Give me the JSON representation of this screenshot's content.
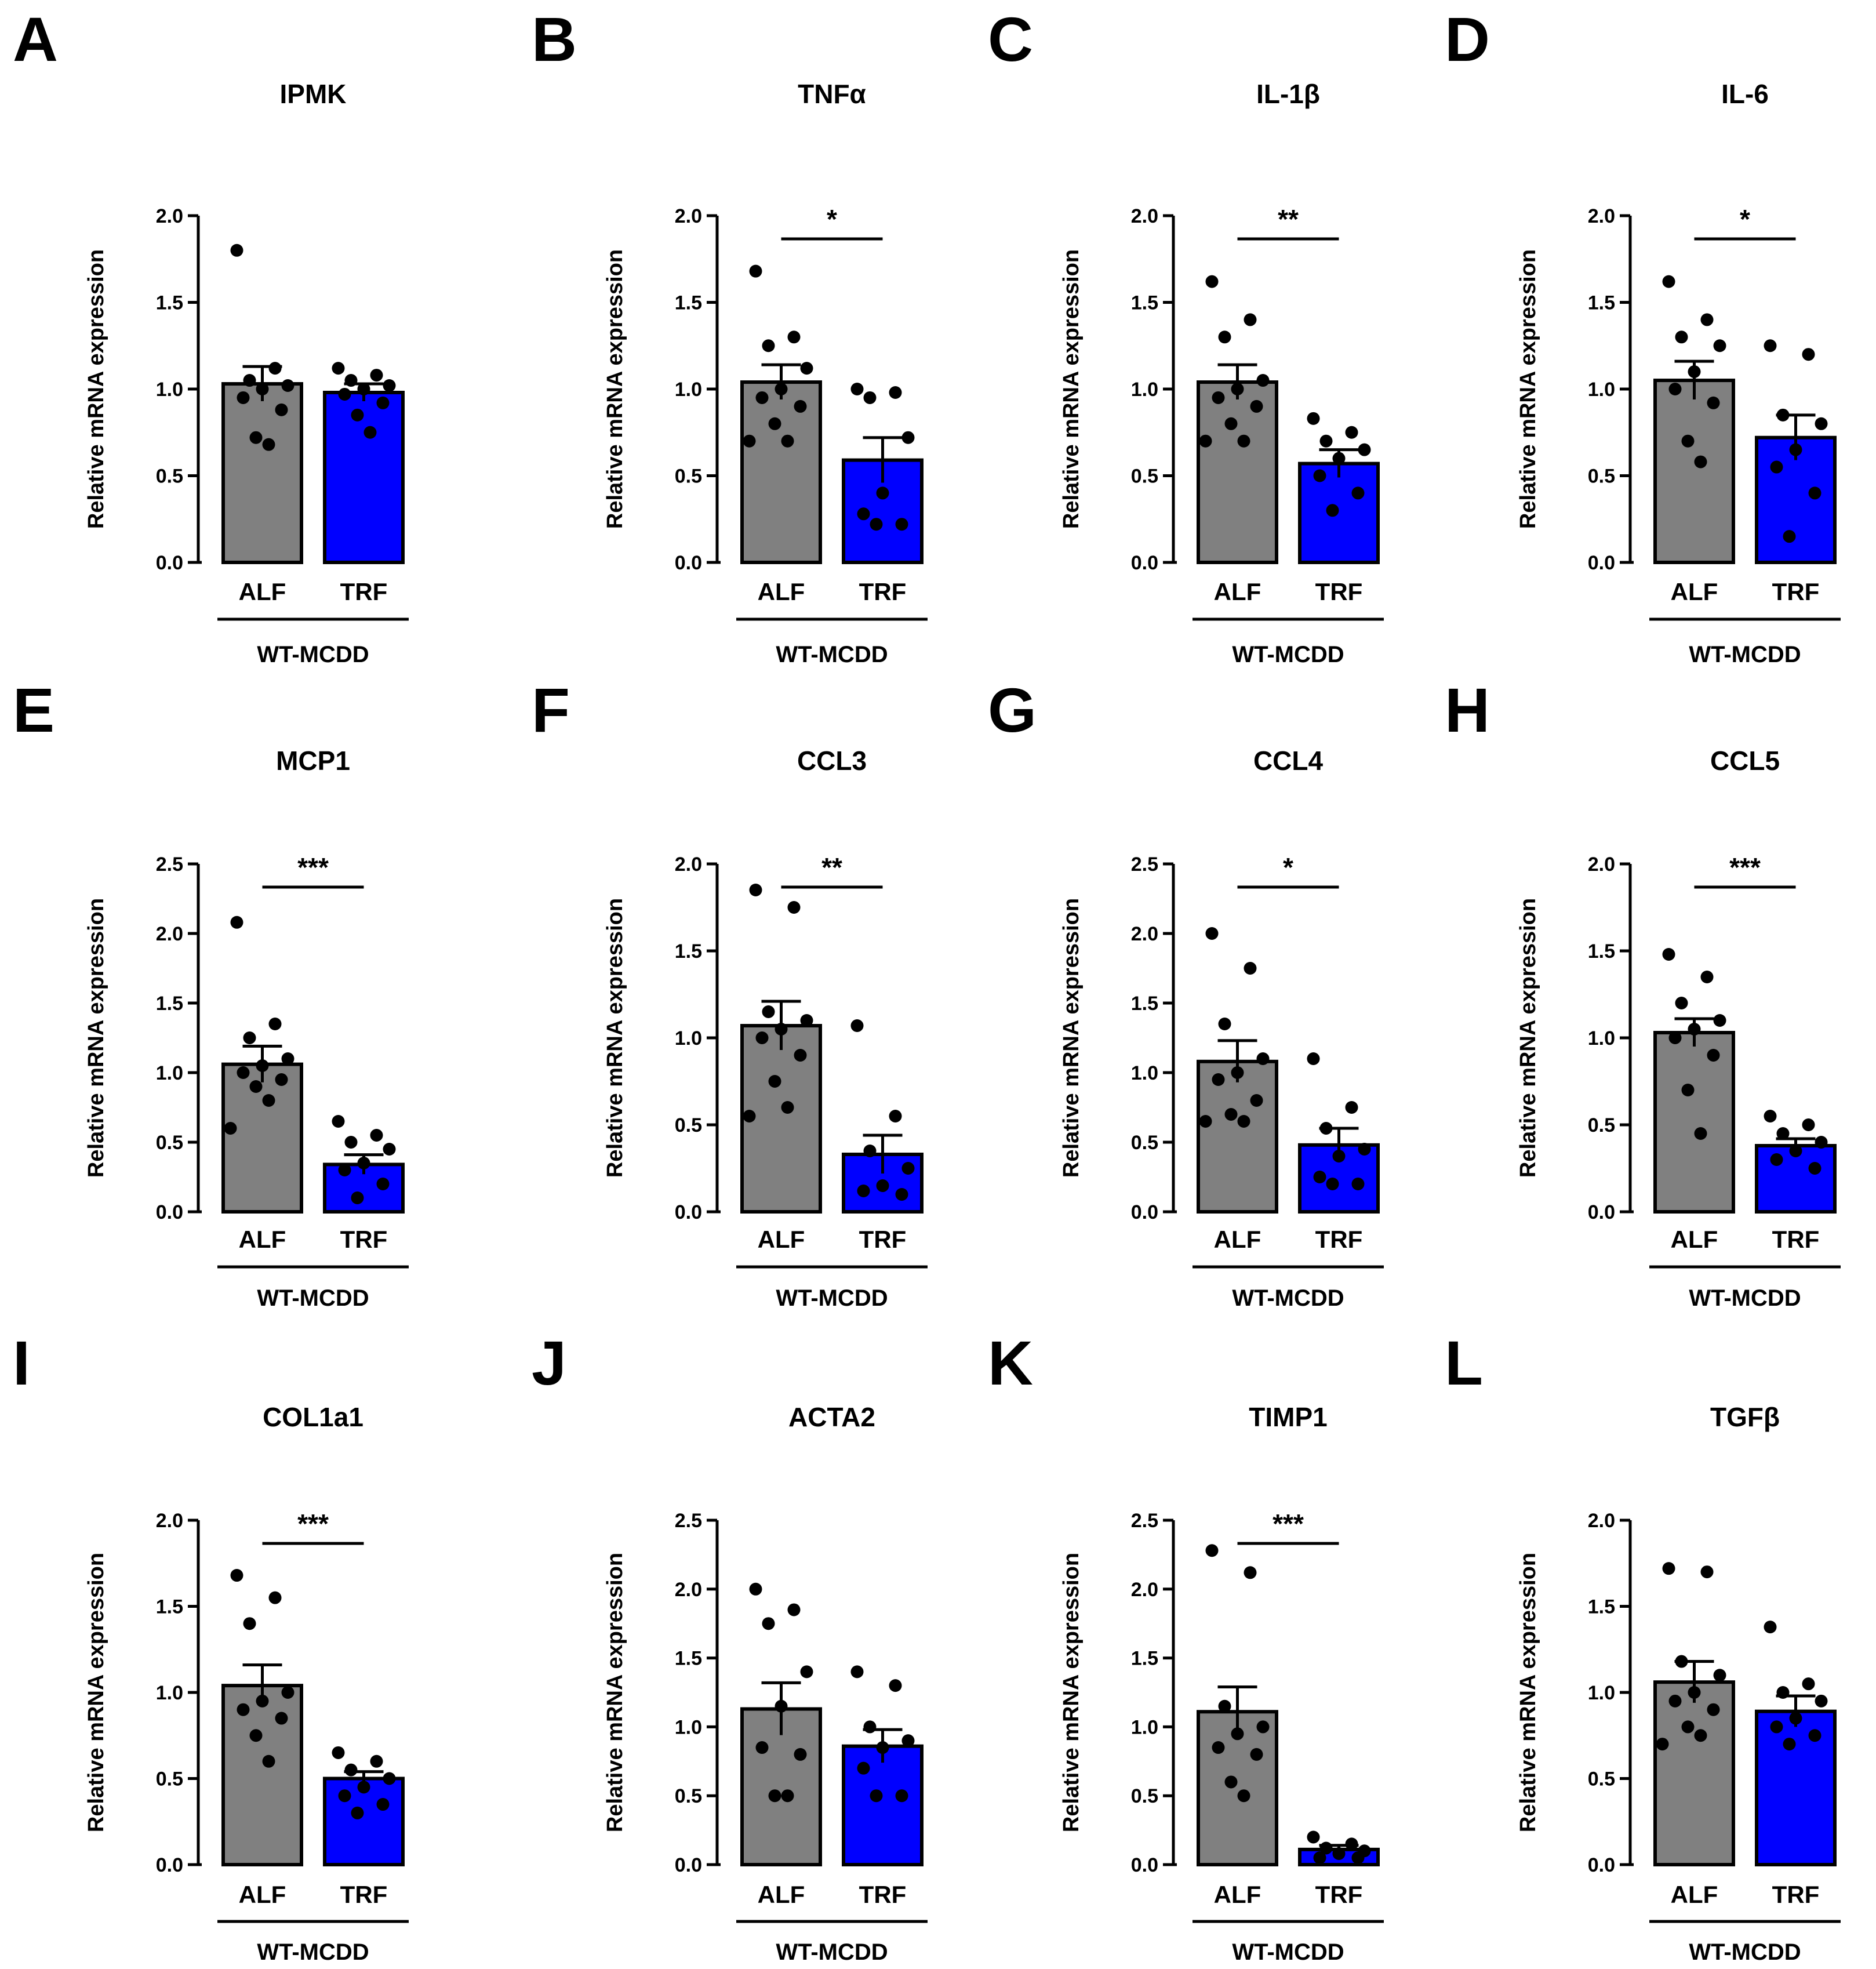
{
  "colors": {
    "alf": "#808080",
    "trf": "#0000ff",
    "ink": "#000000"
  },
  "chart_data": [
    {
      "panel": "A",
      "type": "bar",
      "title": "IPMK",
      "ylabel": "Relative mRNA expression",
      "ylim": [
        0,
        2.0
      ],
      "ticks": [
        "0.0",
        "0.5",
        "1.0",
        "1.5",
        "2.0"
      ],
      "categories": [
        "ALF",
        "TRF"
      ],
      "group": "WT-MCDD",
      "sig": "",
      "series": [
        {
          "name": "ALF",
          "mean": 1.03,
          "sem": 0.1,
          "points": [
            1.8,
            1.12,
            1.05,
            1.02,
            1.0,
            0.95,
            0.88,
            0.72,
            0.68
          ]
        },
        {
          "name": "TRF",
          "mean": 0.98,
          "sem": 0.05,
          "points": [
            1.12,
            1.08,
            1.05,
            1.02,
            1.0,
            0.97,
            0.92,
            0.85,
            0.75
          ]
        }
      ]
    },
    {
      "panel": "B",
      "type": "bar",
      "title": "TNFα",
      "ylabel": "Relative mRNA expression",
      "ylim": [
        0,
        2.0
      ],
      "ticks": [
        "0.0",
        "0.5",
        "1.0",
        "1.5",
        "2.0"
      ],
      "categories": [
        "ALF",
        "TRF"
      ],
      "group": "WT-MCDD",
      "sig": "*",
      "series": [
        {
          "name": "ALF",
          "mean": 1.04,
          "sem": 0.1,
          "points": [
            1.68,
            1.3,
            1.25,
            1.12,
            1.0,
            0.95,
            0.9,
            0.8,
            0.7,
            0.7
          ]
        },
        {
          "name": "TRF",
          "mean": 0.59,
          "sem": 0.13,
          "points": [
            1.0,
            0.98,
            0.95,
            0.72,
            0.4,
            0.28,
            0.22,
            0.22
          ]
        }
      ]
    },
    {
      "panel": "C",
      "type": "bar",
      "title": "IL-1β",
      "ylabel": "Relative mRNA expression",
      "ylim": [
        0,
        2.0
      ],
      "ticks": [
        "0.0",
        "0.5",
        "1.0",
        "1.5",
        "2.0"
      ],
      "categories": [
        "ALF",
        "TRF"
      ],
      "group": "WT-MCDD",
      "sig": "**",
      "series": [
        {
          "name": "ALF",
          "mean": 1.04,
          "sem": 0.1,
          "points": [
            1.62,
            1.4,
            1.3,
            1.05,
            1.0,
            0.95,
            0.9,
            0.8,
            0.7,
            0.7
          ]
        },
        {
          "name": "TRF",
          "mean": 0.57,
          "sem": 0.08,
          "points": [
            0.83,
            0.75,
            0.7,
            0.65,
            0.6,
            0.5,
            0.4,
            0.3
          ]
        }
      ]
    },
    {
      "panel": "D",
      "type": "bar",
      "title": "IL-6",
      "ylabel": "Relative mRNA expression",
      "ylim": [
        0,
        2.0
      ],
      "ticks": [
        "0.0",
        "0.5",
        "1.0",
        "1.5",
        "2.0"
      ],
      "categories": [
        "ALF",
        "TRF"
      ],
      "group": "WT-MCDD",
      "sig": "*",
      "series": [
        {
          "name": "ALF",
          "mean": 1.05,
          "sem": 0.11,
          "points": [
            1.62,
            1.4,
            1.3,
            1.25,
            1.1,
            1.0,
            0.92,
            0.7,
            0.58
          ]
        },
        {
          "name": "TRF",
          "mean": 0.72,
          "sem": 0.13,
          "points": [
            1.25,
            1.2,
            0.85,
            0.8,
            0.65,
            0.55,
            0.4,
            0.15
          ]
        }
      ]
    },
    {
      "panel": "E",
      "type": "bar",
      "title": "MCP1",
      "ylabel": "Relative mRNA expression",
      "ylim": [
        0,
        2.5
      ],
      "ticks": [
        "0.0",
        "0.5",
        "1.0",
        "1.5",
        "2.0",
        "2.5"
      ],
      "categories": [
        "ALF",
        "TRF"
      ],
      "group": "WT-MCDD",
      "sig": "***",
      "series": [
        {
          "name": "ALF",
          "mean": 1.06,
          "sem": 0.13,
          "points": [
            2.08,
            1.35,
            1.25,
            1.1,
            1.05,
            1.0,
            0.95,
            0.9,
            0.8,
            0.6
          ]
        },
        {
          "name": "TRF",
          "mean": 0.34,
          "sem": 0.07,
          "points": [
            0.65,
            0.55,
            0.5,
            0.45,
            0.35,
            0.3,
            0.2,
            0.1
          ]
        }
      ]
    },
    {
      "panel": "F",
      "type": "bar",
      "title": "CCL3",
      "ylabel": "Relative mRNA expression",
      "ylim": [
        0,
        2.0
      ],
      "ticks": [
        "0.0",
        "0.5",
        "1.0",
        "1.5",
        "2.0"
      ],
      "categories": [
        "ALF",
        "TRF"
      ],
      "group": "WT-MCDD",
      "sig": "**",
      "series": [
        {
          "name": "ALF",
          "mean": 1.07,
          "sem": 0.14,
          "points": [
            1.85,
            1.75,
            1.15,
            1.1,
            1.05,
            1.0,
            0.9,
            0.75,
            0.6,
            0.55
          ]
        },
        {
          "name": "TRF",
          "mean": 0.33,
          "sem": 0.11,
          "points": [
            1.07,
            0.55,
            0.35,
            0.25,
            0.15,
            0.12,
            0.1
          ]
        }
      ]
    },
    {
      "panel": "G",
      "type": "bar",
      "title": "CCL4",
      "ylabel": "Relative mRNA expression",
      "ylim": [
        0,
        2.5
      ],
      "ticks": [
        "0.0",
        "0.5",
        "1.0",
        "1.5",
        "2.0",
        "2.5"
      ],
      "categories": [
        "ALF",
        "TRF"
      ],
      "group": "WT-MCDD",
      "sig": "*",
      "series": [
        {
          "name": "ALF",
          "mean": 1.08,
          "sem": 0.15,
          "points": [
            2.0,
            1.75,
            1.35,
            1.1,
            1.0,
            0.95,
            0.8,
            0.7,
            0.65,
            0.65
          ]
        },
        {
          "name": "TRF",
          "mean": 0.48,
          "sem": 0.12,
          "points": [
            1.1,
            0.75,
            0.6,
            0.45,
            0.4,
            0.25,
            0.2,
            0.2
          ]
        }
      ]
    },
    {
      "panel": "H",
      "type": "bar",
      "title": "CCL5",
      "ylabel": "Relative mRNA expression",
      "ylim": [
        0,
        2.0
      ],
      "ticks": [
        "0.0",
        "0.5",
        "1.0",
        "1.5",
        "2.0"
      ],
      "categories": [
        "ALF",
        "TRF"
      ],
      "group": "WT-MCDD",
      "sig": "***",
      "series": [
        {
          "name": "ALF",
          "mean": 1.03,
          "sem": 0.08,
          "points": [
            1.48,
            1.35,
            1.2,
            1.1,
            1.05,
            1.0,
            0.9,
            0.7,
            0.45
          ]
        },
        {
          "name": "TRF",
          "mean": 0.38,
          "sem": 0.04,
          "points": [
            0.55,
            0.5,
            0.45,
            0.4,
            0.35,
            0.3,
            0.25
          ]
        }
      ]
    },
    {
      "panel": "I",
      "type": "bar",
      "title": "COL1a1",
      "ylabel": "Relative mRNA expression",
      "ylim": [
        0,
        2.0
      ],
      "ticks": [
        "0.0",
        "0.5",
        "1.0",
        "1.5",
        "2.0"
      ],
      "categories": [
        "ALF",
        "TRF"
      ],
      "group": "WT-MCDD",
      "sig": "***",
      "series": [
        {
          "name": "ALF",
          "mean": 1.04,
          "sem": 0.12,
          "points": [
            1.68,
            1.55,
            1.4,
            1.0,
            0.95,
            0.9,
            0.85,
            0.75,
            0.6
          ]
        },
        {
          "name": "TRF",
          "mean": 0.5,
          "sem": 0.04,
          "points": [
            0.65,
            0.6,
            0.55,
            0.5,
            0.45,
            0.4,
            0.35,
            0.3
          ]
        }
      ]
    },
    {
      "panel": "J",
      "type": "bar",
      "title": "ACTA2",
      "ylabel": "Relative mRNA expression",
      "ylim": [
        0,
        2.5
      ],
      "ticks": [
        "0.0",
        "0.5",
        "1.0",
        "1.5",
        "2.0",
        "2.5"
      ],
      "categories": [
        "ALF",
        "TRF"
      ],
      "group": "WT-MCDD",
      "sig": "",
      "series": [
        {
          "name": "ALF",
          "mean": 1.13,
          "sem": 0.19,
          "points": [
            2.0,
            1.85,
            1.75,
            1.4,
            1.15,
            0.85,
            0.8,
            0.5,
            0.5
          ]
        },
        {
          "name": "TRF",
          "mean": 0.86,
          "sem": 0.12,
          "points": [
            1.4,
            1.3,
            1.0,
            0.9,
            0.85,
            0.7,
            0.5,
            0.5
          ]
        }
      ]
    },
    {
      "panel": "K",
      "type": "bar",
      "title": "TIMP1",
      "ylabel": "Relative mRNA expression",
      "ylim": [
        0,
        2.5
      ],
      "ticks": [
        "0.0",
        "0.5",
        "1.0",
        "1.5",
        "2.0",
        "2.5"
      ],
      "categories": [
        "ALF",
        "TRF"
      ],
      "group": "WT-MCDD",
      "sig": "***",
      "series": [
        {
          "name": "ALF",
          "mean": 1.11,
          "sem": 0.18,
          "points": [
            2.28,
            2.12,
            1.15,
            1.0,
            0.95,
            0.85,
            0.8,
            0.6,
            0.5
          ]
        },
        {
          "name": "TRF",
          "mean": 0.11,
          "sem": 0.03,
          "points": [
            0.2,
            0.15,
            0.12,
            0.1,
            0.08,
            0.05,
            0.05
          ]
        }
      ]
    },
    {
      "panel": "L",
      "type": "bar",
      "title": "TGFβ",
      "ylabel": "Relative mRNA expression",
      "ylim": [
        0,
        2.0
      ],
      "ticks": [
        "0.0",
        "0.5",
        "1.0",
        "1.5",
        "2.0"
      ],
      "categories": [
        "ALF",
        "TRF"
      ],
      "group": "WT-MCDD",
      "sig": "",
      "series": [
        {
          "name": "ALF",
          "mean": 1.06,
          "sem": 0.12,
          "points": [
            1.72,
            1.7,
            1.18,
            1.1,
            1.0,
            0.95,
            0.9,
            0.8,
            0.75,
            0.7
          ]
        },
        {
          "name": "TRF",
          "mean": 0.89,
          "sem": 0.09,
          "points": [
            1.38,
            1.05,
            1.0,
            0.95,
            0.85,
            0.8,
            0.75,
            0.7
          ]
        }
      ]
    }
  ]
}
